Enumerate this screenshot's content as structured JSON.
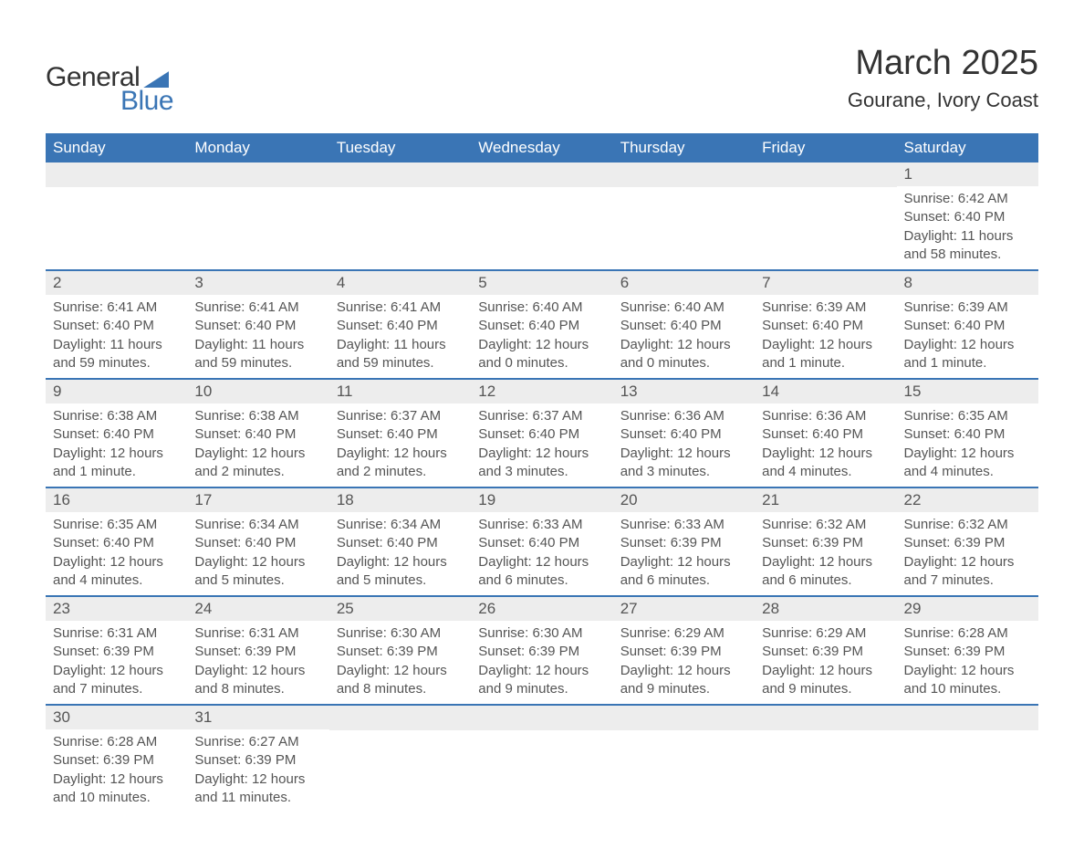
{
  "logo": {
    "text1": "General",
    "text2": "Blue"
  },
  "title": "March 2025",
  "location": "Gourane, Ivory Coast",
  "colors": {
    "header_bg": "#3a75b5",
    "header_text": "#ffffff",
    "daynum_bg": "#ededed",
    "row_border": "#3a75b5",
    "text": "#555555",
    "title_text": "#333333"
  },
  "typography": {
    "title_fontsize": 38,
    "location_fontsize": 22,
    "header_fontsize": 17,
    "daynum_fontsize": 17,
    "body_fontsize": 15
  },
  "weekdays": [
    "Sunday",
    "Monday",
    "Tuesday",
    "Wednesday",
    "Thursday",
    "Friday",
    "Saturday"
  ],
  "labels": {
    "sunrise": "Sunrise:",
    "sunset": "Sunset:",
    "daylight": "Daylight:"
  },
  "weeks": [
    [
      null,
      null,
      null,
      null,
      null,
      null,
      {
        "n": "1",
        "sunrise": "6:42 AM",
        "sunset": "6:40 PM",
        "daylight": "11 hours and 58 minutes."
      }
    ],
    [
      {
        "n": "2",
        "sunrise": "6:41 AM",
        "sunset": "6:40 PM",
        "daylight": "11 hours and 59 minutes."
      },
      {
        "n": "3",
        "sunrise": "6:41 AM",
        "sunset": "6:40 PM",
        "daylight": "11 hours and 59 minutes."
      },
      {
        "n": "4",
        "sunrise": "6:41 AM",
        "sunset": "6:40 PM",
        "daylight": "11 hours and 59 minutes."
      },
      {
        "n": "5",
        "sunrise": "6:40 AM",
        "sunset": "6:40 PM",
        "daylight": "12 hours and 0 minutes."
      },
      {
        "n": "6",
        "sunrise": "6:40 AM",
        "sunset": "6:40 PM",
        "daylight": "12 hours and 0 minutes."
      },
      {
        "n": "7",
        "sunrise": "6:39 AM",
        "sunset": "6:40 PM",
        "daylight": "12 hours and 1 minute."
      },
      {
        "n": "8",
        "sunrise": "6:39 AM",
        "sunset": "6:40 PM",
        "daylight": "12 hours and 1 minute."
      }
    ],
    [
      {
        "n": "9",
        "sunrise": "6:38 AM",
        "sunset": "6:40 PM",
        "daylight": "12 hours and 1 minute."
      },
      {
        "n": "10",
        "sunrise": "6:38 AM",
        "sunset": "6:40 PM",
        "daylight": "12 hours and 2 minutes."
      },
      {
        "n": "11",
        "sunrise": "6:37 AM",
        "sunset": "6:40 PM",
        "daylight": "12 hours and 2 minutes."
      },
      {
        "n": "12",
        "sunrise": "6:37 AM",
        "sunset": "6:40 PM",
        "daylight": "12 hours and 3 minutes."
      },
      {
        "n": "13",
        "sunrise": "6:36 AM",
        "sunset": "6:40 PM",
        "daylight": "12 hours and 3 minutes."
      },
      {
        "n": "14",
        "sunrise": "6:36 AM",
        "sunset": "6:40 PM",
        "daylight": "12 hours and 4 minutes."
      },
      {
        "n": "15",
        "sunrise": "6:35 AM",
        "sunset": "6:40 PM",
        "daylight": "12 hours and 4 minutes."
      }
    ],
    [
      {
        "n": "16",
        "sunrise": "6:35 AM",
        "sunset": "6:40 PM",
        "daylight": "12 hours and 4 minutes."
      },
      {
        "n": "17",
        "sunrise": "6:34 AM",
        "sunset": "6:40 PM",
        "daylight": "12 hours and 5 minutes."
      },
      {
        "n": "18",
        "sunrise": "6:34 AM",
        "sunset": "6:40 PM",
        "daylight": "12 hours and 5 minutes."
      },
      {
        "n": "19",
        "sunrise": "6:33 AM",
        "sunset": "6:40 PM",
        "daylight": "12 hours and 6 minutes."
      },
      {
        "n": "20",
        "sunrise": "6:33 AM",
        "sunset": "6:39 PM",
        "daylight": "12 hours and 6 minutes."
      },
      {
        "n": "21",
        "sunrise": "6:32 AM",
        "sunset": "6:39 PM",
        "daylight": "12 hours and 6 minutes."
      },
      {
        "n": "22",
        "sunrise": "6:32 AM",
        "sunset": "6:39 PM",
        "daylight": "12 hours and 7 minutes."
      }
    ],
    [
      {
        "n": "23",
        "sunrise": "6:31 AM",
        "sunset": "6:39 PM",
        "daylight": "12 hours and 7 minutes."
      },
      {
        "n": "24",
        "sunrise": "6:31 AM",
        "sunset": "6:39 PM",
        "daylight": "12 hours and 8 minutes."
      },
      {
        "n": "25",
        "sunrise": "6:30 AM",
        "sunset": "6:39 PM",
        "daylight": "12 hours and 8 minutes."
      },
      {
        "n": "26",
        "sunrise": "6:30 AM",
        "sunset": "6:39 PM",
        "daylight": "12 hours and 9 minutes."
      },
      {
        "n": "27",
        "sunrise": "6:29 AM",
        "sunset": "6:39 PM",
        "daylight": "12 hours and 9 minutes."
      },
      {
        "n": "28",
        "sunrise": "6:29 AM",
        "sunset": "6:39 PM",
        "daylight": "12 hours and 9 minutes."
      },
      {
        "n": "29",
        "sunrise": "6:28 AM",
        "sunset": "6:39 PM",
        "daylight": "12 hours and 10 minutes."
      }
    ],
    [
      {
        "n": "30",
        "sunrise": "6:28 AM",
        "sunset": "6:39 PM",
        "daylight": "12 hours and 10 minutes."
      },
      {
        "n": "31",
        "sunrise": "6:27 AM",
        "sunset": "6:39 PM",
        "daylight": "12 hours and 11 minutes."
      },
      null,
      null,
      null,
      null,
      null
    ]
  ]
}
